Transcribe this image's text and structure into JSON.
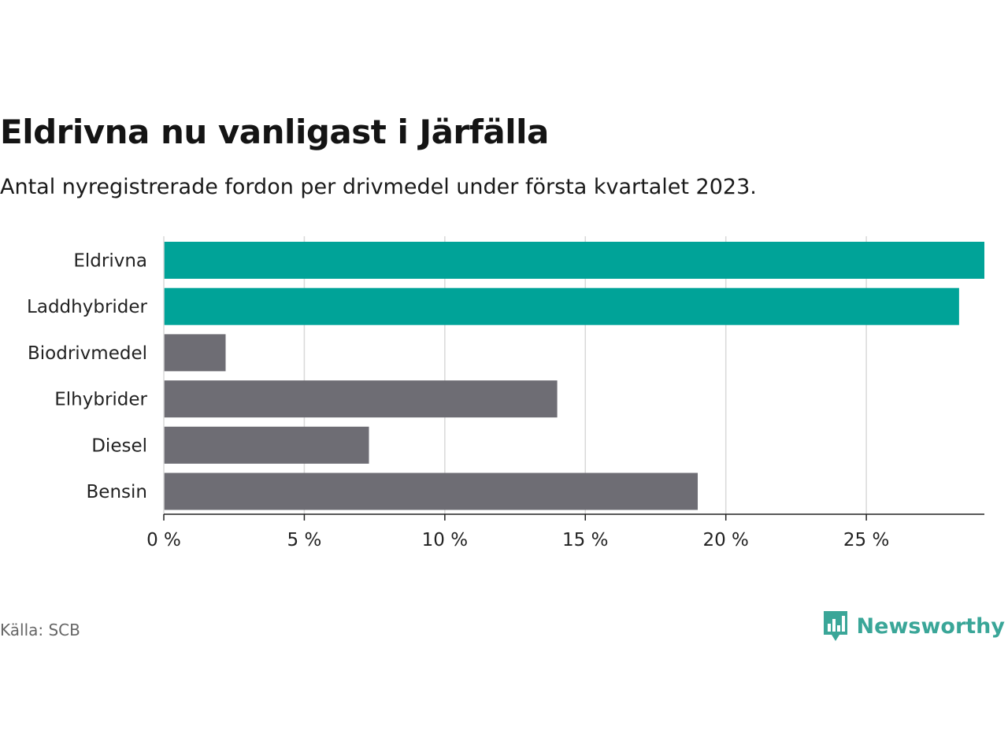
{
  "header": {
    "title": "Eldrivna nu vanligast i Järfälla",
    "subtitle": "Antal nyregistrerade fordon per drivmedel under första kvartalet 2023."
  },
  "footer": {
    "source": "Källa: SCB",
    "brand": "Newsworthy",
    "brand_icon": "bar-chart-speech-bubble-icon"
  },
  "colors": {
    "highlight": "#00A398",
    "default": "#6E6D74",
    "grid": "#d9d9d9",
    "axis": "#222222",
    "brand": "#3aa698"
  },
  "chart_data": {
    "type": "bar",
    "orientation": "horizontal",
    "title": "Eldrivna nu vanligast i Järfälla",
    "subtitle": "Antal nyregistrerade fordon per drivmedel under första kvartalet 2023.",
    "xlabel": "",
    "ylabel": "",
    "categories": [
      "Eldrivna",
      "Laddhybrider",
      "Biodrivmedel",
      "Elhybrider",
      "Diesel",
      "Bensin"
    ],
    "values": [
      29.2,
      28.3,
      2.2,
      14.0,
      7.3,
      19.0
    ],
    "highlighted": [
      true,
      true,
      false,
      false,
      false,
      false
    ],
    "xlim": [
      0,
      29.2
    ],
    "xticks": [
      0,
      5,
      10,
      15,
      20,
      25
    ],
    "xtick_labels": [
      "0 %",
      "5 %",
      "10 %",
      "15 %",
      "20 %",
      "25 %"
    ],
    "unit": "%",
    "grid": true
  }
}
